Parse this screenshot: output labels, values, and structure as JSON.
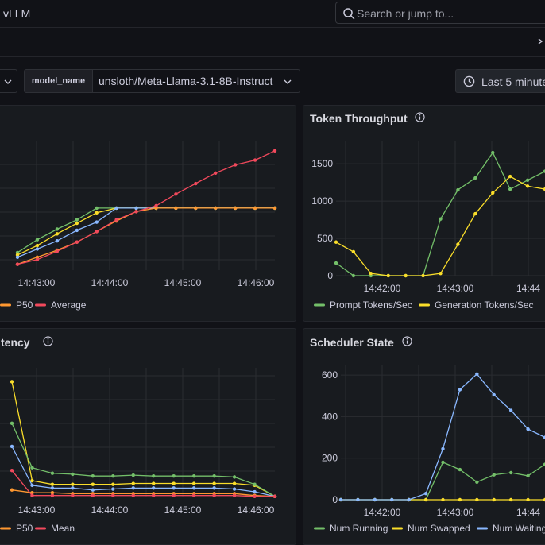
{
  "header": {
    "breadcrumb": "vLLM"
  },
  "search": {
    "placeholder": "Search or jump to..."
  },
  "variables": {
    "model_label": "model_name",
    "model_value": "unsloth/Meta-Llama-3.1-8B-Instruct"
  },
  "time_picker": {
    "label": "Last 5 minute"
  },
  "panels": {
    "latency_top": {
      "title": "",
      "x_ticks": [
        "14:43:00",
        "14:44:00",
        "14:45:00",
        "14:46:00"
      ],
      "legend": [
        {
          "label": "P50",
          "color": "#ff9830"
        },
        {
          "label": "Average",
          "color": "#f2495c"
        }
      ]
    },
    "token_throughput": {
      "title": "Token Throughput",
      "y_ticks": [
        "1500",
        "1000",
        "500",
        "0"
      ],
      "x_ticks": [
        "14:42:00",
        "14:43:00",
        "14:44"
      ],
      "legend": [
        {
          "label": "Prompt Tokens/Sec",
          "color": "#73bf69"
        },
        {
          "label": "Generation Tokens/Sec",
          "color": "#fade2a"
        }
      ]
    },
    "latency_bottom": {
      "title": "tency",
      "x_ticks": [
        "14:43:00",
        "14:44:00",
        "14:45:00",
        "14:46:00"
      ],
      "legend": [
        {
          "label": "P50",
          "color": "#ff9830"
        },
        {
          "label": "Mean",
          "color": "#f2495c"
        }
      ]
    },
    "scheduler_state": {
      "title": "Scheduler State",
      "y_ticks": [
        "600",
        "400",
        "200",
        "0"
      ],
      "x_ticks": [
        "14:42:00",
        "14:43:00",
        "14:44"
      ],
      "legend": [
        {
          "label": "Num Running",
          "color": "#73bf69"
        },
        {
          "label": "Num Swapped",
          "color": "#fade2a"
        },
        {
          "label": "Num Waiting",
          "color": "#8ab8ff"
        }
      ]
    }
  },
  "chart_data": [
    {
      "panel": "latency_top",
      "type": "line",
      "series": [
        {
          "color": "#73bf69",
          "values": [
            0.5,
            1.6,
            2.5,
            3.3,
            4.3,
            4.3,
            4.3,
            4.3,
            4.3,
            4.3,
            4.3,
            4.3,
            4.3,
            4.3
          ]
        },
        {
          "color": "#fade2a",
          "values": [
            0.3,
            1.1,
            2.1,
            3.0,
            3.9,
            4.3,
            4.3,
            4.3,
            4.3,
            4.3,
            4.3,
            4.3,
            4.3,
            4.3
          ]
        },
        {
          "color": "#8ab8ff",
          "values": [
            0.1,
            0.8,
            1.5,
            2.4,
            3.1,
            4.3,
            4.3,
            4.3,
            4.3,
            4.3,
            4.3,
            4.3,
            4.3,
            4.3
          ]
        },
        {
          "name": "P50",
          "color": "#ff9830",
          "values": [
            -0.5,
            0.1,
            0.7,
            1.4,
            2.3,
            3.2,
            4.0,
            4.3,
            4.3,
            4.3,
            4.3,
            4.3,
            4.3,
            4.3
          ]
        },
        {
          "name": "Average",
          "color": "#f2495c",
          "values": [
            -0.5,
            -0.1,
            0.6,
            1.4,
            2.3,
            3.3,
            4.0,
            4.5,
            5.5,
            6.4,
            7.3,
            8.0,
            8.4,
            9.2
          ]
        }
      ]
    },
    {
      "panel": "token_throughput",
      "type": "line",
      "ylim": [
        0,
        1800
      ],
      "series": [
        {
          "name": "Prompt Tokens/Sec",
          "color": "#73bf69",
          "values": [
            170,
            0,
            0,
            0,
            0,
            0,
            760,
            1150,
            1310,
            1650,
            1160,
            1280,
            1400
          ]
        },
        {
          "name": "Generation Tokens/Sec",
          "color": "#fade2a",
          "values": [
            450,
            320,
            30,
            0,
            0,
            0,
            30,
            420,
            830,
            1110,
            1330,
            1200,
            1160
          ]
        }
      ]
    },
    {
      "panel": "latency_bottom",
      "type": "line",
      "series": [
        {
          "color": "#fade2a",
          "values": [
            12.5,
            1.8,
            1.4,
            1.4,
            1.4,
            1.4,
            1.5,
            1.5,
            1.5,
            1.5,
            1.5,
            1.5,
            1.3,
            0.1
          ]
        },
        {
          "color": "#73bf69",
          "values": [
            8.0,
            3.2,
            2.6,
            2.5,
            2.3,
            2.3,
            2.4,
            2.3,
            2.3,
            2.3,
            2.3,
            2.2,
            1.4,
            0.1
          ]
        },
        {
          "color": "#8ab8ff",
          "values": [
            5.5,
            1.3,
            1.0,
            1.0,
            0.8,
            0.9,
            1.0,
            1.0,
            1.0,
            1.0,
            1.0,
            0.9,
            0.6,
            0.1
          ]
        },
        {
          "name": "P50",
          "color": "#ff9830",
          "values": [
            0.8,
            0.5,
            0.5,
            0.4,
            0.4,
            0.4,
            0.4,
            0.4,
            0.4,
            0.4,
            0.4,
            0.4,
            0.2,
            0.1
          ]
        },
        {
          "name": "Mean",
          "color": "#f2495c",
          "values": [
            2.9,
            0.2,
            0.2,
            0.2,
            0.2,
            0.2,
            0.2,
            0.2,
            0.2,
            0.2,
            0.2,
            0.2,
            0.1,
            0.1
          ]
        }
      ]
    },
    {
      "panel": "scheduler_state",
      "type": "line",
      "ylim": [
        0,
        650
      ],
      "series": [
        {
          "name": "Num Running",
          "color": "#73bf69",
          "values": [
            0,
            0,
            0,
            0,
            0,
            0,
            180,
            145,
            85,
            120,
            130,
            115,
            170
          ]
        },
        {
          "name": "Num Swapped",
          "color": "#fade2a",
          "values": [
            0,
            0,
            0,
            0,
            0,
            0,
            0,
            0,
            0,
            0,
            0,
            0,
            0
          ]
        },
        {
          "name": "Num Waiting",
          "color": "#8ab8ff",
          "values": [
            0,
            0,
            0,
            0,
            0,
            30,
            245,
            530,
            605,
            505,
            430,
            340,
            300
          ]
        }
      ]
    }
  ]
}
